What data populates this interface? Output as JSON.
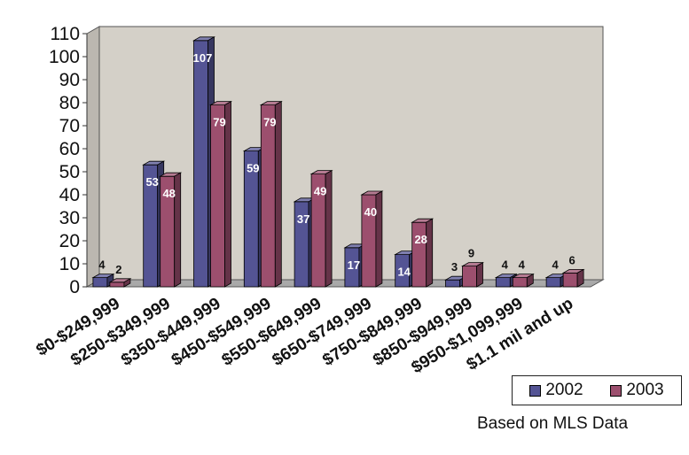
{
  "chart_data": {
    "type": "bar",
    "style": "3d-clustered-column",
    "categories": [
      "$0-$249,999",
      "$250-$349,999",
      "$350-$449,999",
      "$450-$549,999",
      "$550-$649,999",
      "$650-$749,999",
      "$750-$849,999",
      "$850-$949,999",
      "$950-$1,099,999",
      "$1.1 mil and up"
    ],
    "series": [
      {
        "name": "2002",
        "color": "#545494",
        "values": [
          4,
          53,
          107,
          59,
          37,
          17,
          14,
          3,
          4,
          4
        ]
      },
      {
        "name": "2003",
        "color": "#9c4f6e",
        "values": [
          2,
          48,
          79,
          79,
          49,
          40,
          28,
          9,
          4,
          6
        ]
      }
    ],
    "data_labels": {
      "2002": [
        "4",
        "53",
        "107",
        "59",
        "37",
        "17",
        "14",
        "3",
        "4",
        "4"
      ],
      "2003": [
        "2",
        "48",
        "79",
        "79",
        "49",
        "40",
        "28",
        "9",
        "4",
        "6"
      ]
    },
    "ylim": [
      0,
      110
    ],
    "yticks": [
      "0",
      "10",
      "20",
      "30",
      "40",
      "50",
      "60",
      "70",
      "80",
      "90",
      "100",
      "110"
    ],
    "grid": false,
    "title": "",
    "xlabel": "",
    "ylabel": "",
    "legend_position": "bottom-right",
    "wall_color": "#d4d0c8",
    "floor_color": "#a9a9a9"
  },
  "legend": {
    "items": [
      {
        "label": "2002",
        "color": "#545494"
      },
      {
        "label": "2003",
        "color": "#9c4f6e"
      }
    ]
  },
  "note": "Based on MLS Data"
}
